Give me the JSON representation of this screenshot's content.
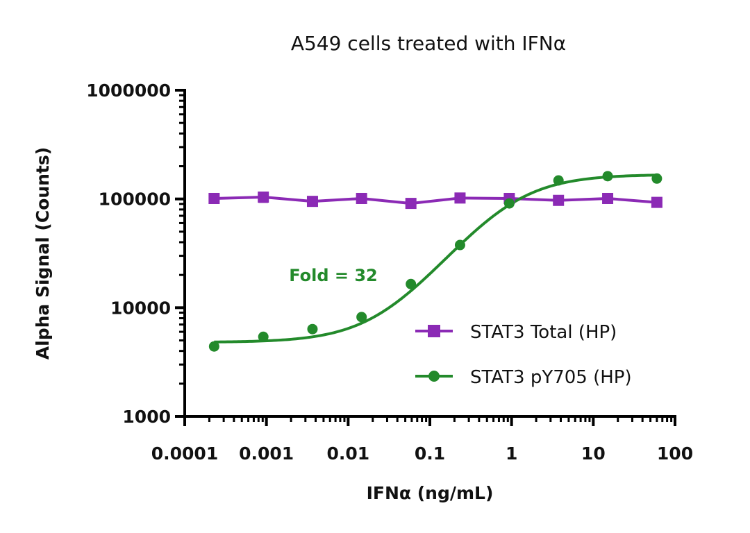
{
  "chart_data": {
    "type": "scatter",
    "title": "A549 cells treated with IFNα",
    "xlabel": "IFNα (ng/mL)",
    "ylabel": "Alpha Signal (Counts)",
    "xscale": "log",
    "yscale": "log",
    "xlim": [
      0.0001,
      100
    ],
    "ylim": [
      1000,
      1000000
    ],
    "xticks": [
      0.0001,
      0.001,
      0.01,
      0.1,
      1,
      10,
      100
    ],
    "xtick_labels": [
      "0.0001",
      "0.001",
      "0.01",
      "0.1",
      "1",
      "10",
      "100"
    ],
    "yticks": [
      1000,
      10000,
      100000,
      1000000
    ],
    "ytick_labels": [
      "1000",
      "10000",
      "100000",
      "1000000"
    ],
    "grid": false,
    "legend_placement": "bottom-right",
    "x": [
      0.000229,
      0.000916,
      0.00366,
      0.0146,
      0.0586,
      0.234,
      0.938,
      3.75,
      15,
      60
    ],
    "series": [
      {
        "name": "STAT3 Total (HP)",
        "color": "#8b2ab5",
        "marker": "square",
        "line": "connected",
        "values": [
          101000,
          104000,
          95000,
          101000,
          91000,
          102000,
          101000,
          97000,
          101000,
          93000
        ],
        "errors": [
          0,
          10000,
          0,
          0,
          0,
          0,
          0,
          0,
          0,
          0
        ]
      },
      {
        "name": "STAT3 pY705 (HP)",
        "color": "#238a2b",
        "marker": "circle",
        "line": "sigmoidal-fit",
        "values": [
          4400,
          5400,
          6350,
          8200,
          16500,
          37700,
          91000,
          148000,
          162000,
          154000
        ]
      }
    ],
    "annotations": [
      {
        "text": "Fold = 32",
        "color": "#238a2b"
      }
    ]
  }
}
